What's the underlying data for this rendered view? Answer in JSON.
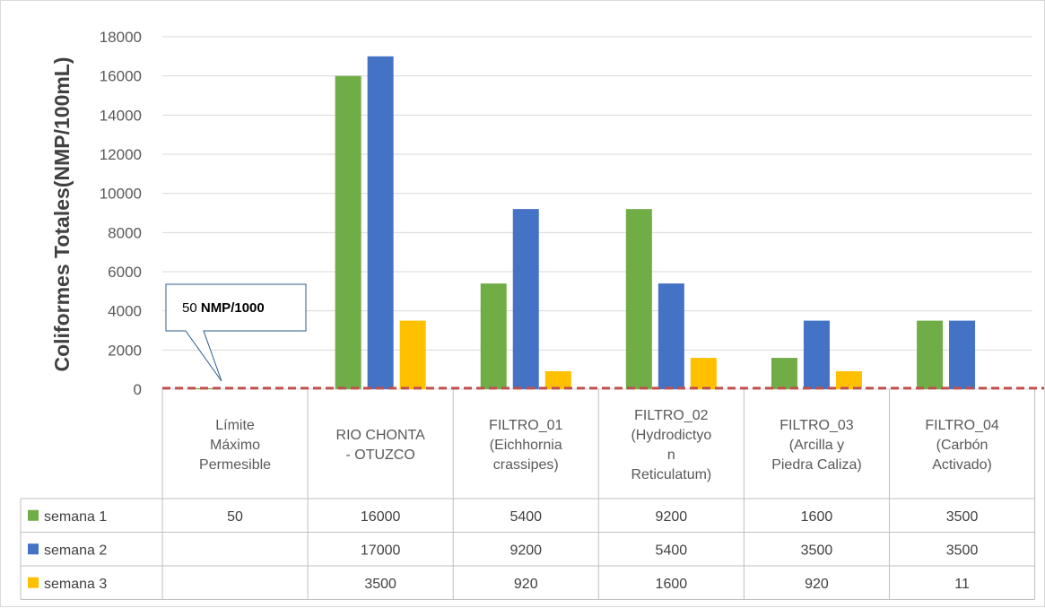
{
  "chart_data": {
    "type": "bar",
    "title": "",
    "xlabel": "",
    "ylabel": "Coliformes Totales(NMP/100mL)",
    "ylim": [
      0,
      18000
    ],
    "yticks": [
      "0",
      "2000",
      "4000",
      "6000",
      "8000",
      "10000",
      "12000",
      "14000",
      "16000",
      "18000"
    ],
    "grid": true,
    "legend": "table",
    "categories": [
      [
        "Límite",
        "Máximo",
        "Permesible"
      ],
      [
        "RIO CHONTA",
        "- OTUZCO"
      ],
      [
        "FILTRO_01",
        "(Eichhornia",
        "crassipes)"
      ],
      [
        "FILTRO_02",
        "(Hydrodictyo",
        "n",
        "Reticulatum)"
      ],
      [
        "FILTRO_03",
        "(Arcilla y",
        "Piedra Caliza)"
      ],
      [
        "FILTRO_04",
        "(Carbón",
        "Activado)"
      ]
    ],
    "series": [
      {
        "name": "semana 1",
        "color": "#70ad47",
        "values": [
          50,
          16000,
          5400,
          9200,
          1600,
          3500
        ],
        "labels": [
          "50",
          "16000",
          "5400",
          "9200",
          "1600",
          "3500"
        ]
      },
      {
        "name": "semana 2",
        "color": "#4472c4",
        "values": [
          null,
          17000,
          9200,
          5400,
          3500,
          3500
        ],
        "labels": [
          "",
          "17000",
          "9200",
          "5400",
          "3500",
          "3500"
        ]
      },
      {
        "name": "semana 3",
        "color": "#ffc000",
        "values": [
          null,
          3500,
          920,
          1600,
          920,
          11
        ],
        "labels": [
          "",
          "3500",
          "920",
          "1600",
          "920",
          "11"
        ]
      }
    ],
    "reference_line": {
      "value": 50,
      "color": "#c0504d",
      "style": "dashed"
    },
    "annotation": {
      "prefix": "50 ",
      "strong": "NMP/1000"
    }
  }
}
